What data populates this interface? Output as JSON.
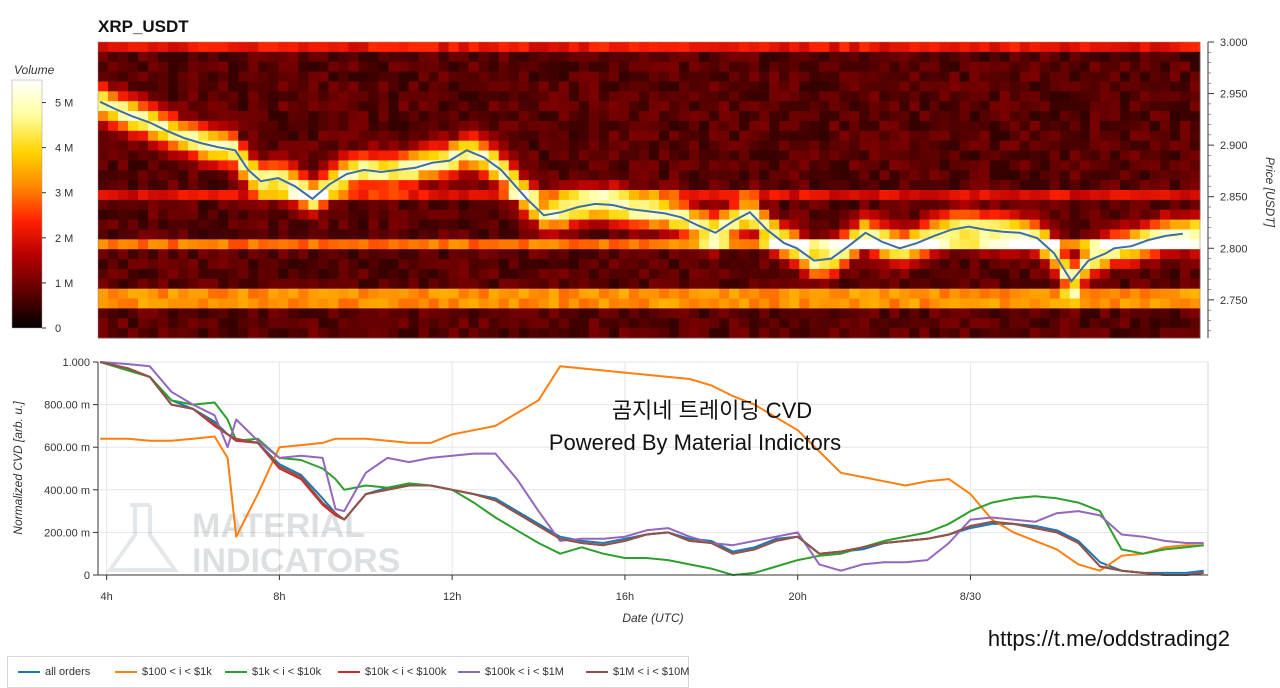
{
  "chart_data": [
    {
      "type": "heatmap",
      "title": "XRP_USDT",
      "ylabel": "Price [USDT]",
      "ylim": [
        2.713,
        3.0
      ],
      "yticks": [
        "3.000",
        "2.950",
        "2.900",
        "2.850",
        "2.800",
        "2.750"
      ],
      "colorbar": {
        "title": "Volume",
        "ticks": [
          "5 M",
          "4 M",
          "3 M",
          "2 M",
          "1 M",
          "0"
        ],
        "range": [
          0,
          5500000
        ],
        "colors": [
          "#000000",
          "#5a0000",
          "#b40000",
          "#ff2000",
          "#ff8800",
          "#ffd400",
          "#ffffa0",
          "#ffffff"
        ]
      },
      "price_series": {
        "color": "#3b6ea5",
        "x_hours": [
          3.85,
          4.2,
          4.6,
          5.0,
          5.4,
          5.8,
          6.2,
          6.6,
          7.0,
          7.3,
          7.6,
          8.0,
          8.4,
          8.8,
          9.2,
          9.6,
          10.0,
          10.4,
          10.8,
          11.2,
          11.6,
          12.0,
          12.4,
          12.8,
          13.2,
          13.5,
          13.8,
          14.2,
          14.6,
          15.0,
          15.4,
          15.8,
          16.2,
          16.6,
          17.0,
          17.4,
          17.8,
          18.2,
          18.6,
          19.0,
          19.4,
          19.8,
          20.1,
          20.5,
          20.9,
          21.3,
          21.7,
          22.1,
          22.5,
          22.9,
          23.3,
          23.7,
          24.1,
          24.5,
          24.9,
          25.3,
          25.7,
          26.1,
          26.5,
          26.9,
          27.3,
          27.5,
          27.9,
          28.3,
          28.7,
          29.1
        ],
        "price": [
          2.942,
          2.935,
          2.928,
          2.922,
          2.914,
          2.907,
          2.902,
          2.898,
          2.895,
          2.876,
          2.865,
          2.868,
          2.86,
          2.848,
          2.862,
          2.872,
          2.876,
          2.874,
          2.876,
          2.878,
          2.883,
          2.885,
          2.895,
          2.888,
          2.876,
          2.862,
          2.848,
          2.832,
          2.835,
          2.84,
          2.843,
          2.842,
          2.838,
          2.836,
          2.834,
          2.83,
          2.822,
          2.815,
          2.826,
          2.835,
          2.818,
          2.805,
          2.8,
          2.788,
          2.79,
          2.802,
          2.815,
          2.806,
          2.8,
          2.805,
          2.812,
          2.818,
          2.821,
          2.818,
          2.816,
          2.815,
          2.81,
          2.795,
          2.768,
          2.788,
          2.795,
          2.8,
          2.802,
          2.808,
          2.812,
          2.814
        ]
      }
    },
    {
      "type": "line",
      "xlabel": "Date (UTC)",
      "ylabel": "Normalized CVD [arb. u.]",
      "xlim": [
        3.8,
        29.5
      ],
      "ylim": [
        0,
        1
      ],
      "xticks": [
        {
          "hour": 4,
          "label": "4h"
        },
        {
          "hour": 8,
          "label": "8h"
        },
        {
          "hour": 12,
          "label": "12h"
        },
        {
          "hour": 16,
          "label": "16h"
        },
        {
          "hour": 20,
          "label": "20h"
        },
        {
          "hour": 24,
          "label": "8/30"
        }
      ],
      "yticks": [
        {
          "value": 1.0,
          "label": "1.000"
        },
        {
          "value": 0.8,
          "label": "800.00 m"
        },
        {
          "value": 0.6,
          "label": "600.00 m"
        },
        {
          "value": 0.4,
          "label": "400.00 m"
        },
        {
          "value": 0.2,
          "label": "200.00 m"
        },
        {
          "value": 0.0,
          "label": "0"
        }
      ],
      "x": [
        3.85,
        4.5,
        5.0,
        5.5,
        6.0,
        6.5,
        6.8,
        7.0,
        7.5,
        8.0,
        8.5,
        9.0,
        9.3,
        9.5,
        10.0,
        10.5,
        11.0,
        11.5,
        12.0,
        12.5,
        13.0,
        13.5,
        14.0,
        14.5,
        15.0,
        15.5,
        16.0,
        16.5,
        17.0,
        17.5,
        18.0,
        18.5,
        19.0,
        19.5,
        20.0,
        20.5,
        21.0,
        21.5,
        22.0,
        22.5,
        23.0,
        23.5,
        24.0,
        24.5,
        25.0,
        25.5,
        26.0,
        26.5,
        27.0,
        27.5,
        28.0,
        28.5,
        29.0,
        29.4
      ],
      "series": [
        {
          "name": "all orders",
          "color": "#1f77b4",
          "values": [
            1.0,
            0.97,
            0.93,
            0.82,
            0.78,
            0.72,
            0.66,
            0.64,
            0.62,
            0.52,
            0.47,
            0.36,
            0.29,
            0.26,
            0.38,
            0.41,
            0.42,
            0.42,
            0.4,
            0.38,
            0.36,
            0.3,
            0.24,
            0.18,
            0.16,
            0.15,
            0.17,
            0.19,
            0.2,
            0.17,
            0.16,
            0.11,
            0.13,
            0.17,
            0.18,
            0.1,
            0.11,
            0.12,
            0.15,
            0.16,
            0.17,
            0.19,
            0.22,
            0.24,
            0.24,
            0.23,
            0.21,
            0.16,
            0.06,
            0.02,
            0.01,
            0.01,
            0.01,
            0.02
          ]
        },
        {
          "name": "$100 < i < $1k",
          "color": "#ff7f0e",
          "values": [
            0.64,
            0.64,
            0.63,
            0.63,
            0.64,
            0.65,
            0.55,
            0.18,
            0.38,
            0.6,
            0.61,
            0.62,
            0.64,
            0.64,
            0.64,
            0.63,
            0.62,
            0.62,
            0.66,
            0.68,
            0.7,
            0.76,
            0.82,
            0.98,
            0.97,
            0.96,
            0.95,
            0.94,
            0.93,
            0.92,
            0.89,
            0.84,
            0.8,
            0.74,
            0.68,
            0.58,
            0.48,
            0.46,
            0.44,
            0.42,
            0.44,
            0.45,
            0.38,
            0.26,
            0.2,
            0.16,
            0.12,
            0.05,
            0.02,
            0.09,
            0.1,
            0.13,
            0.14,
            0.14
          ]
        },
        {
          "name": "$1k < i < $10k",
          "color": "#2ca02c",
          "values": [
            1.0,
            0.96,
            0.93,
            0.82,
            0.8,
            0.81,
            0.73,
            0.63,
            0.64,
            0.55,
            0.54,
            0.5,
            0.45,
            0.4,
            0.42,
            0.41,
            0.43,
            0.42,
            0.4,
            0.34,
            0.27,
            0.21,
            0.15,
            0.1,
            0.13,
            0.1,
            0.08,
            0.08,
            0.07,
            0.05,
            0.03,
            0.0,
            0.01,
            0.04,
            0.07,
            0.09,
            0.1,
            0.13,
            0.16,
            0.18,
            0.2,
            0.24,
            0.3,
            0.34,
            0.36,
            0.37,
            0.36,
            0.34,
            0.3,
            0.12,
            0.1,
            0.12,
            0.13,
            0.14
          ]
        },
        {
          "name": "$10k < i < $100k",
          "color": "#d62728",
          "values": [
            1.0,
            0.97,
            0.93,
            0.8,
            0.78,
            0.7,
            0.66,
            0.63,
            0.62,
            0.5,
            0.45,
            0.33,
            0.28,
            0.26,
            0.38,
            0.4,
            0.42,
            0.42,
            0.4,
            0.38,
            0.35,
            0.29,
            0.23,
            0.17,
            0.15,
            0.14,
            0.16,
            0.19,
            0.2,
            0.16,
            0.15,
            0.1,
            0.12,
            0.16,
            0.18,
            0.1,
            0.11,
            0.13,
            0.15,
            0.16,
            0.17,
            0.19,
            0.23,
            0.25,
            0.24,
            0.22,
            0.2,
            0.15,
            0.04,
            0.02,
            0.01,
            0.0,
            0.0,
            0.01
          ]
        },
        {
          "name": "$100k < i < $1M",
          "color": "#9467bd",
          "values": [
            1.0,
            0.99,
            0.98,
            0.86,
            0.8,
            0.75,
            0.6,
            0.73,
            0.63,
            0.55,
            0.56,
            0.55,
            0.31,
            0.3,
            0.48,
            0.55,
            0.53,
            0.55,
            0.56,
            0.57,
            0.57,
            0.45,
            0.3,
            0.16,
            0.17,
            0.17,
            0.18,
            0.21,
            0.22,
            0.18,
            0.15,
            0.14,
            0.16,
            0.18,
            0.2,
            0.05,
            0.02,
            0.05,
            0.06,
            0.06,
            0.07,
            0.15,
            0.26,
            0.27,
            0.26,
            0.25,
            0.29,
            0.3,
            0.28,
            0.19,
            0.18,
            0.16,
            0.15,
            0.15
          ]
        },
        {
          "name": "$1M < i < $10M",
          "color": "#8c564b",
          "values": [
            1.0,
            0.97,
            0.93,
            0.8,
            0.78,
            0.71,
            0.66,
            0.64,
            0.62,
            0.51,
            0.46,
            0.34,
            0.29,
            0.26,
            0.38,
            0.4,
            0.42,
            0.42,
            0.4,
            0.38,
            0.35,
            0.29,
            0.23,
            0.17,
            0.15,
            0.14,
            0.16,
            0.19,
            0.2,
            0.16,
            0.15,
            0.1,
            0.12,
            0.16,
            0.18,
            0.1,
            0.11,
            0.13,
            0.15,
            0.16,
            0.17,
            0.19,
            0.23,
            0.25,
            0.24,
            0.22,
            0.2,
            0.15,
            0.04,
            0.02,
            0.01,
            0.0,
            0.0,
            0.01
          ]
        }
      ]
    }
  ],
  "annotations": {
    "line1": "곰지네 트레이딩 CVD",
    "line2": "Powered By Material Indictors",
    "watermark_line1": "MATERIAL",
    "watermark_line2": "INDICATORS",
    "url": "https://t.me/oddstrading2"
  }
}
